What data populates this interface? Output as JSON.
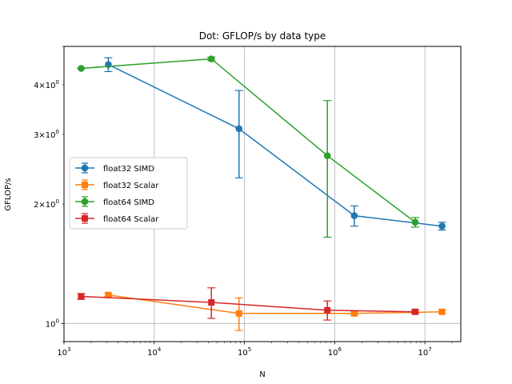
{
  "chart_data": {
    "type": "line",
    "title": "Dot: GFLOP/s by data type",
    "xlabel": "N",
    "ylabel": "GFLOP/s",
    "xscale": "log",
    "yscale": "log",
    "xlim": [
      1000,
      25000000
    ],
    "ylim": [
      0.9,
      5.0
    ],
    "grid": "vertical major",
    "legend_position": "center-left",
    "x_ticks": [
      {
        "value": 1000,
        "base": "10",
        "exp": "3"
      },
      {
        "value": 10000,
        "base": "10",
        "exp": "4"
      },
      {
        "value": 100000,
        "base": "10",
        "exp": "5"
      },
      {
        "value": 1000000,
        "base": "10",
        "exp": "6"
      },
      {
        "value": 10000000,
        "base": "10",
        "exp": "7"
      }
    ],
    "y_ticks": [
      {
        "value": 1,
        "base": "10",
        "exp": "0"
      },
      {
        "value": 2,
        "base": "2×10",
        "exp": "0"
      },
      {
        "value": 3,
        "base": "3×10",
        "exp": "0"
      },
      {
        "value": 4,
        "base": "4×10",
        "exp": "0"
      }
    ],
    "series": [
      {
        "name": "float32 SIMD",
        "color": "#1f77b4",
        "marker": "circle",
        "x": [
          3100,
          87000,
          1650000,
          15500000
        ],
        "y": [
          4.5,
          3.1,
          1.87,
          1.76
        ],
        "err": [
          0.18,
          0.77,
          0.11,
          0.04
        ]
      },
      {
        "name": "float32 Scalar",
        "color": "#ff7f0e",
        "marker": "square",
        "x": [
          3100,
          87000,
          1650000,
          15500000
        ],
        "y": [
          1.18,
          1.06,
          1.06,
          1.07
        ],
        "err": [
          0.01,
          0.1,
          0.01,
          0.01
        ]
      },
      {
        "name": "float64 SIMD",
        "color": "#2ca02c",
        "marker": "circle",
        "x": [
          1550,
          43000,
          830000,
          7800000
        ],
        "y": [
          4.4,
          4.65,
          2.65,
          1.8
        ],
        "err": [
          0.01,
          0.05,
          1.0,
          0.05
        ]
      },
      {
        "name": "float64 Scalar",
        "color": "#d62728",
        "marker": "square",
        "x": [
          1550,
          43000,
          830000,
          7800000
        ],
        "y": [
          1.17,
          1.13,
          1.08,
          1.07
        ],
        "err": [
          0.02,
          0.1,
          0.06,
          0.01
        ]
      }
    ]
  }
}
